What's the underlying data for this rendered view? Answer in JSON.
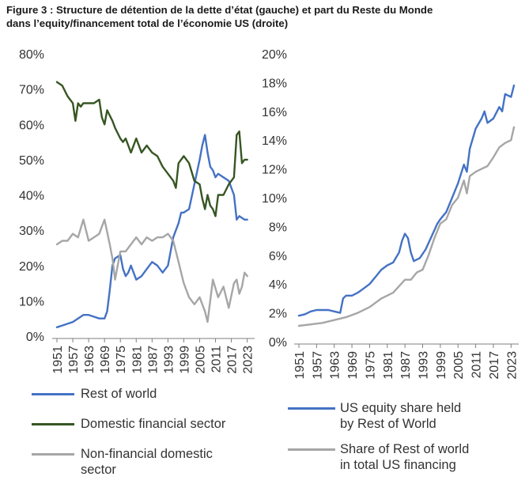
{
  "title_lines": [
    "Figure 3 : Structure de détention de la dette d’état (gauche) et part du Reste du Monde",
    "dans l’equity/financement total de l’économie US (droite)"
  ],
  "chart_data": [
    {
      "type": "line",
      "position": "left",
      "ylim": [
        0,
        80
      ],
      "yticks": [
        "0%",
        "10%",
        "20%",
        "30%",
        "40%",
        "50%",
        "60%",
        "70%",
        "80%"
      ],
      "xticks": [
        "1951",
        "1957",
        "1963",
        "1969",
        "1975",
        "1981",
        "1987",
        "1993",
        "1999",
        "2005",
        "2011",
        "2017",
        "2023"
      ],
      "xlim": [
        1951,
        2024
      ],
      "series": [
        {
          "name": "Rest of world",
          "color": "#4472c4",
          "x": [
            1951,
            1953,
            1955,
            1957,
            1959,
            1961,
            1963,
            1965,
            1967,
            1969,
            1970,
            1971,
            1972,
            1973,
            1975,
            1976,
            1977,
            1978,
            1979,
            1981,
            1983,
            1985,
            1987,
            1989,
            1991,
            1993,
            1995,
            1997,
            1998,
            1999,
            2001,
            2003,
            2005,
            2006,
            2007,
            2008,
            2009,
            2010,
            2011,
            2012,
            2014,
            2016,
            2018,
            2019,
            2020,
            2022,
            2023
          ],
          "y": [
            2.5,
            3,
            3.5,
            4,
            5,
            6,
            6,
            5.5,
            5,
            5,
            7,
            13,
            20,
            22,
            23,
            19,
            17,
            18,
            20,
            16,
            17,
            19,
            21,
            20,
            18,
            20,
            28,
            32,
            35,
            35,
            36,
            43,
            50,
            54,
            57,
            52,
            48,
            47,
            45,
            46,
            45,
            44,
            40,
            33,
            34,
            33,
            33
          ]
        },
        {
          "name": "Domestic financial sector",
          "color": "#375623",
          "x": [
            1951,
            1953,
            1955,
            1957,
            1958,
            1959,
            1960,
            1961,
            1963,
            1965,
            1967,
            1968,
            1969,
            1970,
            1972,
            1973,
            1975,
            1976,
            1977,
            1979,
            1981,
            1983,
            1985,
            1987,
            1989,
            1991,
            1993,
            1995,
            1996,
            1997,
            1999,
            2001,
            2003,
            2005,
            2006,
            2007,
            2008,
            2009,
            2010,
            2011,
            2012,
            2014,
            2016,
            2018,
            2019,
            2020,
            2021,
            2022,
            2023
          ],
          "y": [
            72,
            71,
            68,
            66,
            61,
            66,
            65,
            66,
            66,
            66,
            67,
            62,
            60,
            64,
            61,
            59,
            56,
            55,
            56,
            52,
            56,
            52,
            54,
            52,
            51,
            48,
            46,
            44,
            42,
            49,
            51,
            49,
            44,
            43,
            39,
            36,
            40,
            37,
            36,
            34,
            40,
            40,
            43,
            45,
            57,
            58,
            49,
            50,
            50
          ]
        },
        {
          "name": "Non-financial domestic sector",
          "color": "#a6a6a6",
          "x": [
            1951,
            1953,
            1955,
            1957,
            1959,
            1961,
            1963,
            1965,
            1967,
            1969,
            1971,
            1972,
            1973,
            1975,
            1977,
            1979,
            1981,
            1983,
            1985,
            1987,
            1989,
            1991,
            1993,
            1995,
            1997,
            1999,
            2001,
            2003,
            2005,
            2007,
            2008,
            2010,
            2012,
            2014,
            2016,
            2018,
            2019,
            2020,
            2021,
            2022,
            2023
          ],
          "y": [
            26,
            27,
            27,
            29,
            28,
            33,
            27,
            28,
            29,
            33,
            26,
            22,
            16,
            24,
            24,
            26,
            28,
            26,
            28,
            27,
            28,
            28,
            29,
            27,
            21,
            15,
            11,
            9,
            11,
            7,
            4,
            16,
            11,
            14,
            8,
            15,
            16,
            12,
            14,
            18,
            17
          ]
        }
      ]
    },
    {
      "type": "line",
      "position": "right",
      "ylim": [
        0,
        20
      ],
      "yticks": [
        "0%",
        "2%",
        "4%",
        "6%",
        "8%",
        "10%",
        "12%",
        "14%",
        "16%",
        "18%",
        "20%"
      ],
      "xticks": [
        "1951",
        "1957",
        "1963",
        "1969",
        "1975",
        "1981",
        "1987",
        "1993",
        "1999",
        "2005",
        "2011",
        "2017",
        "2023"
      ],
      "xlim": [
        1951,
        2024
      ],
      "series": [
        {
          "name": "US equity share held by Rest of World",
          "color": "#4472c4",
          "x": [
            1951,
            1953,
            1955,
            1957,
            1959,
            1961,
            1963,
            1965,
            1966,
            1967,
            1969,
            1971,
            1973,
            1975,
            1977,
            1979,
            1981,
            1983,
            1985,
            1986,
            1987,
            1988,
            1989,
            1990,
            1992,
            1994,
            1996,
            1998,
            1999,
            2001,
            2003,
            2005,
            2007,
            2008,
            2009,
            2011,
            2013,
            2014,
            2015,
            2017,
            2019,
            2020,
            2021,
            2023,
            2024
          ],
          "y": [
            1.8,
            1.9,
            2.1,
            2.2,
            2.2,
            2.2,
            2.1,
            2.0,
            3.0,
            3.2,
            3.2,
            3.4,
            3.7,
            4.0,
            4.5,
            5.0,
            5.3,
            5.5,
            6.2,
            7.0,
            7.5,
            7.2,
            6.2,
            5.6,
            5.8,
            6.4,
            7.3,
            8.2,
            8.5,
            9.0,
            10.0,
            11.0,
            12.3,
            11.8,
            13.4,
            14.8,
            15.5,
            16.0,
            15.2,
            15.5,
            16.3,
            16.0,
            17.2,
            17.0,
            17.8
          ]
        },
        {
          "name": "Share of Rest of world in total US financing",
          "color": "#a6a6a6",
          "x": [
            1951,
            1955,
            1959,
            1963,
            1967,
            1971,
            1975,
            1979,
            1983,
            1987,
            1989,
            1991,
            1993,
            1995,
            1997,
            1999,
            2001,
            2003,
            2005,
            2007,
            2008,
            2009,
            2011,
            2013,
            2015,
            2017,
            2019,
            2021,
            2023,
            2024
          ],
          "y": [
            1.1,
            1.2,
            1.3,
            1.5,
            1.7,
            2.0,
            2.4,
            3.0,
            3.4,
            4.3,
            4.3,
            4.8,
            5.0,
            6.0,
            7.2,
            8.2,
            8.5,
            9.5,
            10.0,
            11.2,
            10.3,
            11.5,
            11.8,
            12.0,
            12.2,
            12.8,
            13.5,
            13.8,
            14.0,
            14.9
          ]
        }
      ]
    }
  ],
  "legend_left": [
    {
      "label_lines": [
        "Rest of world"
      ],
      "color": "#4472c4"
    },
    {
      "label_lines": [
        "Domestic financial sector"
      ],
      "color": "#375623"
    },
    {
      "label_lines": [
        "Non-financial domestic",
        "sector"
      ],
      "color": "#a6a6a6"
    }
  ],
  "legend_right": [
    {
      "label_lines": [
        "US equity share held",
        "by  Rest of World"
      ],
      "color": "#4472c4"
    },
    {
      "label_lines": [
        "Share of Rest of world",
        "in total US financing"
      ],
      "color": "#a6a6a6"
    }
  ]
}
